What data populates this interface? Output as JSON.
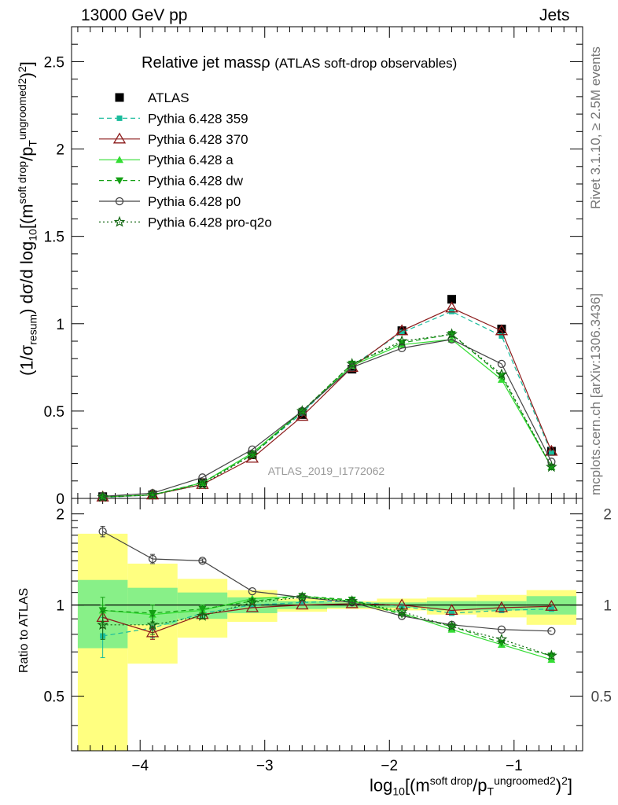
{
  "header": {
    "left": "13000 GeV pp",
    "right": "Jets"
  },
  "side_labels": {
    "top": "Rivet 3.1.10, ≥ 2.5M events",
    "bottom": "mcplots.cern.ch [arXiv:1306.3436]"
  },
  "chart_data": {
    "type": "line",
    "title": "Relative jet massρ",
    "subtitle": "(ATLAS soft-drop observables)",
    "watermark": "ATLAS_2019_I1772062",
    "x": [
      -4.3,
      -3.9,
      -3.5,
      -3.1,
      -2.7,
      -2.3,
      -1.9,
      -1.5,
      -1.1,
      -0.7
    ],
    "x_edges": [
      -4.5,
      -4.1,
      -3.7,
      -3.3,
      -2.9,
      -2.5,
      -2.1,
      -1.7,
      -1.3,
      -0.9,
      -0.5
    ],
    "xlim": [
      -4.55,
      -0.45
    ],
    "xticks": [
      -4,
      -3,
      -2,
      -1
    ],
    "xtick_labels": [
      "−4",
      "−3",
      "−2",
      "−1"
    ],
    "xlabel": {
      "pre": "log",
      "sub": "10",
      "mid": "[(m",
      "sup1": "soft drop",
      "mid2": "/p",
      "sub2": "T",
      "sup2": "ungroomed",
      "sup3": "2",
      "post": ")",
      "tail": "2",
      "end": "]"
    },
    "main": {
      "ylim": [
        0,
        2.7
      ],
      "yticks": [
        0,
        0.5,
        1,
        1.5,
        2,
        2.5
      ],
      "ytick_labels": [
        "0",
        "0.5",
        "1",
        "1.5",
        "2",
        "2.5"
      ],
      "ylabel": {
        "a": "(1/σ",
        "b": "resum",
        "c": ") dσ/d log",
        "d": "10",
        "e": "[(m",
        "f": "soft drop",
        "g": "/p",
        "h": "T",
        "i": "ungroomed",
        "j": "2",
        "k": ")",
        "l": "2",
        "m": "]"
      }
    },
    "ratio": {
      "ylim": [
        0.33,
        2.25
      ],
      "yticks": [
        0.5,
        1,
        2
      ],
      "ytick_labels": [
        "0.5",
        "1",
        "2"
      ],
      "ylabel": "Ratio to ATLAS",
      "band_inner": [
        [
          0.72,
          1.21
        ],
        [
          0.86,
          1.14
        ],
        [
          0.9,
          1.1
        ],
        [
          0.94,
          1.06
        ],
        [
          0.97,
          1.03
        ],
        [
          0.98,
          1.02
        ],
        [
          0.98,
          1.02
        ],
        [
          0.96,
          1.03
        ],
        [
          0.96,
          1.03
        ],
        [
          0.93,
          1.07
        ]
      ],
      "band_outer": [
        [
          0.33,
          1.72
        ],
        [
          0.64,
          1.37
        ],
        [
          0.78,
          1.22
        ],
        [
          0.88,
          1.12
        ],
        [
          0.95,
          1.05
        ],
        [
          0.97,
          1.03
        ],
        [
          0.96,
          1.05
        ],
        [
          0.93,
          1.06
        ],
        [
          0.91,
          1.08
        ],
        [
          0.86,
          1.12
        ]
      ]
    },
    "series": [
      {
        "name": "ATLAS",
        "color": "#000000",
        "dash": "",
        "marker": "square",
        "values": [
          0.01,
          0.02,
          0.09,
          0.25,
          0.48,
          0.74,
          0.96,
          1.14,
          0.97,
          0.27
        ],
        "ratio": null
      },
      {
        "name": "Pythia 6.428 359",
        "color": "#1abc9c",
        "dash": "6,4",
        "marker": "smallsquare",
        "values": [
          0.005,
          0.02,
          0.09,
          0.25,
          0.49,
          0.76,
          0.95,
          1.07,
          0.93,
          0.26
        ],
        "ratio": [
          0.79,
          0.84,
          0.94,
          1.0,
          1.02,
          1.03,
          0.99,
          0.94,
          0.96,
          0.97
        ],
        "ratio_err": [
          0.12,
          0.06,
          0.03,
          0,
          0,
          0,
          0,
          0,
          0,
          0
        ]
      },
      {
        "name": "Pythia 6.428 370",
        "color": "#8b1a1a",
        "dash": "",
        "marker": "triangle-open",
        "values": [
          0.008,
          0.02,
          0.08,
          0.23,
          0.47,
          0.75,
          0.96,
          1.09,
          0.96,
          0.27
        ],
        "ratio": [
          0.91,
          0.81,
          0.93,
          0.98,
          1.0,
          1.01,
          1.0,
          0.96,
          0.98,
          0.99
        ],
        "ratio_err": [
          0.07,
          0.04,
          0.03,
          0,
          0,
          0,
          0,
          0,
          0,
          0
        ]
      },
      {
        "name": "Pythia 6.428 a",
        "color": "#33dd33",
        "dash": "",
        "marker": "triangle",
        "values": [
          0.009,
          0.02,
          0.09,
          0.26,
          0.5,
          0.76,
          0.88,
          0.91,
          0.68,
          0.18
        ],
        "ratio": [
          0.96,
          0.93,
          0.96,
          1.05,
          1.07,
          1.03,
          0.94,
          0.83,
          0.74,
          0.66
        ],
        "ratio_err": [
          0.04,
          0.03,
          0.02,
          0,
          0,
          0,
          0,
          0,
          0,
          0
        ]
      },
      {
        "name": "Pythia 6.428 dw",
        "color": "#14a014",
        "dash": "6,4",
        "marker": "triangle-down",
        "values": [
          0.009,
          0.02,
          0.09,
          0.25,
          0.5,
          0.77,
          0.89,
          0.94,
          0.7,
          0.18
        ],
        "ratio": [
          0.96,
          0.94,
          0.97,
          1.03,
          1.07,
          1.04,
          0.93,
          0.85,
          0.75,
          0.68
        ],
        "ratio_err": [
          0.1,
          0.06,
          0.03,
          0,
          0,
          0,
          0,
          0,
          0,
          0
        ]
      },
      {
        "name": "Pythia 6.428 p0",
        "color": "#444444",
        "dash": "",
        "marker": "circle-open",
        "values": [
          0.012,
          0.03,
          0.12,
          0.28,
          0.5,
          0.75,
          0.86,
          0.91,
          0.77,
          0.21
        ],
        "ratio": [
          1.75,
          1.42,
          1.4,
          1.11,
          1.06,
          1.02,
          0.92,
          0.86,
          0.83,
          0.82
        ],
        "ratio_err": [
          0.07,
          0.05,
          0.02,
          0,
          0,
          0,
          0,
          0,
          0,
          0
        ]
      },
      {
        "name": "Pythia 6.428 pro-q2o",
        "color": "#116611",
        "dash": "2,3",
        "marker": "star",
        "values": [
          0.008,
          0.02,
          0.08,
          0.25,
          0.5,
          0.77,
          0.9,
          0.94,
          0.71,
          0.18
        ],
        "ratio": [
          0.86,
          0.86,
          0.92,
          1.02,
          1.06,
          1.03,
          0.95,
          0.85,
          0.77,
          0.68
        ],
        "ratio_err": [
          0.09,
          0.06,
          0.02,
          0,
          0,
          0,
          0,
          0,
          0,
          0
        ]
      }
    ]
  }
}
